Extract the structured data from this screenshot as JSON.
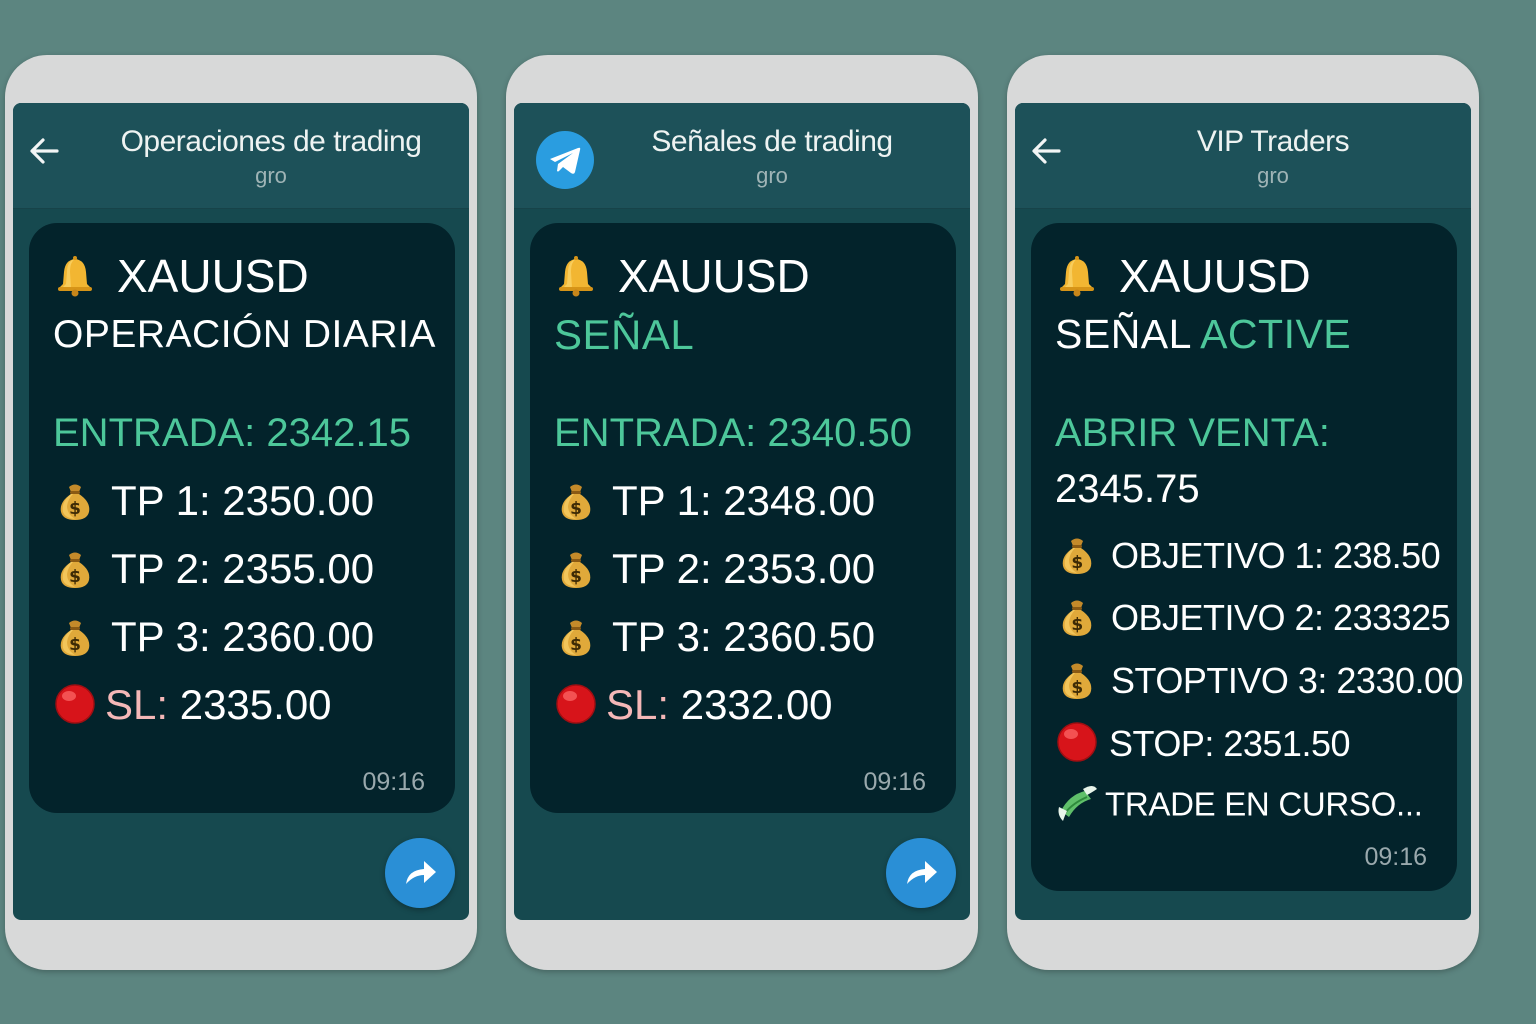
{
  "phones": [
    {
      "title": "Operaciones de trading",
      "subtitle": "gro",
      "symbol": "XAUUSD",
      "heading": "OPERACIÓN DIARIA",
      "entry": "ENTRADA: 2342.15",
      "tp1": "TP 1: 2350.00",
      "tp2": "TP 2: 2355.00",
      "tp3": "TP 3: 2360.00",
      "sl_label": "SL:",
      "sl_value": " 2335.00",
      "time": "09:16"
    },
    {
      "title": "Señales de trading",
      "subtitle": "gro",
      "symbol": "XAUUSD",
      "heading": "SEÑAL",
      "entry": "ENTRADA: 2340.50",
      "tp1": "TP 1: 2348.00",
      "tp2": "TP 2: 2353.00",
      "tp3": "TP 3: 2360.50",
      "sl_label": "SL:",
      "sl_value": " 2332.00",
      "time": "09:16"
    },
    {
      "title": "VIP Traders",
      "subtitle": "gro",
      "symbol": "XAUUSD",
      "heading_a": "SEÑAL ",
      "heading_b": "ACTIVE",
      "open_label": "ABRIR VENTA:",
      "open_value": "2345.75",
      "obj1": "OBJETIVO 1: 238.50",
      "obj2": "OBJETIVO 2: 233325",
      "obj3": "STOPTIVO 3: 2330.00",
      "stop": "STOP: 2351.50",
      "status": "TRADE EN CURSO...",
      "time": "09:16"
    }
  ],
  "icons": {
    "back": "back-arrow-icon",
    "telegram": "telegram-icon",
    "bell": "bell-icon",
    "money_bag": "money-bag-icon",
    "red_circle": "red-circle-icon",
    "money_wings": "money-with-wings-icon",
    "forward": "forward-icon"
  },
  "colors": {
    "background": "#5c8580",
    "header": "#1d5159",
    "bubble": "#03232b",
    "green": "#4dc79a",
    "pink": "#f4b7b7",
    "forward_button": "#2a8fd6"
  }
}
